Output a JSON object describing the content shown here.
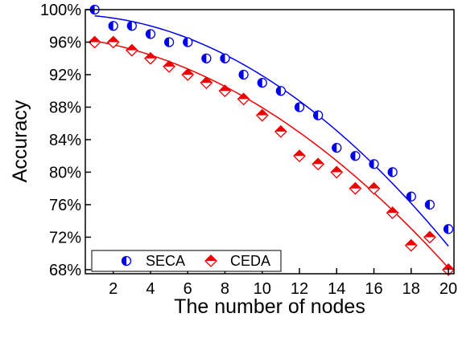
{
  "chart_data": {
    "type": "scatter",
    "title": "",
    "xlabel": "The number of nodes",
    "ylabel": "Accuracy",
    "xlim": [
      0.5,
      20.3
    ],
    "ylim": [
      67.5,
      100
    ],
    "x_ticks": [
      2,
      4,
      6,
      8,
      10,
      12,
      14,
      16,
      18,
      20
    ],
    "x_tick_labels": [
      "2",
      "4",
      "6",
      "8",
      "10",
      "12",
      "14",
      "16",
      "18",
      "20"
    ],
    "y_ticks": [
      68,
      72,
      76,
      80,
      84,
      88,
      92,
      96,
      100
    ],
    "y_tick_labels": [
      "68%",
      "72%",
      "76%",
      "80%",
      "84%",
      "88%",
      "92%",
      "96%",
      "100%"
    ],
    "grid": false,
    "legend_position": "bottom-left",
    "series": [
      {
        "name": "SECA",
        "color": "#0000ee",
        "marker": "half-filled-circle",
        "x": [
          1,
          2,
          3,
          4,
          5,
          6,
          7,
          8,
          9,
          10,
          11,
          12,
          13,
          14,
          15,
          16,
          17,
          18,
          19,
          20
        ],
        "values": [
          100,
          98,
          98,
          97,
          96,
          96,
          94,
          94,
          92,
          91,
          90,
          88,
          87,
          83,
          82,
          81,
          80,
          77,
          76,
          73
        ],
        "fit_curve": [
          [
            1,
            99.6
          ],
          [
            5,
            96.8
          ],
          [
            10,
            91.5
          ],
          [
            15,
            84.0
          ],
          [
            20,
            70.5
          ]
        ]
      },
      {
        "name": "CEDA",
        "color": "#ee0000",
        "marker": "half-filled-diamond",
        "x": [
          1,
          2,
          3,
          4,
          5,
          6,
          7,
          8,
          9,
          10,
          11,
          12,
          13,
          14,
          15,
          16,
          17,
          18,
          19,
          20
        ],
        "values": [
          96,
          96,
          95,
          94,
          93,
          92,
          91,
          90,
          89,
          87,
          85,
          82,
          81,
          80,
          78,
          78,
          75,
          71,
          72,
          68
        ],
        "fit_curve": [
          [
            1,
            96.2
          ],
          [
            5,
            93.5
          ],
          [
            10,
            88.0
          ],
          [
            15,
            79.5
          ],
          [
            20,
            68.2
          ]
        ]
      }
    ]
  }
}
